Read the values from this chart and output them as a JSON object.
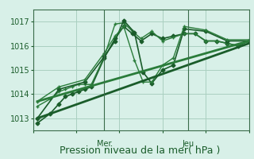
{
  "bg_color": "#d8f0e8",
  "plot_bg_color": "#d8f0e8",
  "grid_color": "#aad0c0",
  "ylim": [
    1012.5,
    1017.5
  ],
  "yticks": [
    1013,
    1014,
    1015,
    1016,
    1017
  ],
  "xlabel": "Pression niveau de la mer( hPa )",
  "xlabel_fontsize": 9,
  "tick_fontsize": 7,
  "day_labels": [
    "Mer",
    "Jeu"
  ],
  "day_positions": [
    0.33,
    0.72
  ],
  "series": [
    {
      "x": [
        0.02,
        0.08,
        0.12,
        0.15,
        0.18,
        0.21,
        0.24,
        0.27,
        0.33,
        0.38,
        0.42,
        0.46,
        0.5,
        0.55,
        0.6,
        0.65,
        0.7,
        0.75,
        0.8,
        0.85,
        0.9,
        0.95,
        1.0
      ],
      "y": [
        1012.8,
        1013.2,
        1013.6,
        1013.9,
        1014.0,
        1014.1,
        1014.2,
        1014.3,
        1015.5,
        1016.3,
        1016.8,
        1016.5,
        1016.2,
        1016.5,
        1016.3,
        1016.4,
        1016.5,
        1016.5,
        1016.2,
        1016.2,
        1016.1,
        1016.0,
        1016.2
      ],
      "marker": "D",
      "markersize": 2.5,
      "linewidth": 1.2,
      "color": "#1a5c2a"
    },
    {
      "x": [
        0.02,
        0.08,
        0.12,
        0.15,
        0.18,
        0.21,
        0.24,
        0.27,
        0.33,
        0.38,
        0.42,
        0.46,
        0.5,
        0.55,
        0.6,
        0.65,
        0.7,
        0.75,
        0.8,
        0.85,
        0.9,
        0.95,
        1.0
      ],
      "y": [
        1013.5,
        1013.8,
        1014.1,
        1014.2,
        1014.3,
        1014.4,
        1014.4,
        1014.4,
        1015.55,
        1016.9,
        1016.95,
        1016.6,
        1016.3,
        1016.6,
        1016.2,
        1016.35,
        1016.5,
        1016.5,
        1016.2,
        1016.2,
        1016.1,
        1016.0,
        1016.2
      ],
      "marker": "+",
      "markersize": 3,
      "linewidth": 1.0,
      "color": "#2a7c3a"
    },
    {
      "x": [
        0.02,
        0.12,
        0.24,
        0.33,
        0.38,
        0.42,
        0.47,
        0.51,
        0.55,
        0.6,
        0.65,
        0.7,
        0.8,
        0.9,
        1.0
      ],
      "y": [
        1013.0,
        1014.2,
        1014.5,
        1015.55,
        1016.2,
        1017.05,
        1016.55,
        1014.9,
        1014.45,
        1015.0,
        1015.2,
        1016.7,
        1016.6,
        1016.2,
        1016.2
      ],
      "marker": "D",
      "markersize": 2.5,
      "linewidth": 1.2,
      "color": "#1a5c2a"
    },
    {
      "x": [
        0.02,
        0.12,
        0.24,
        0.33,
        0.38,
        0.42,
        0.47,
        0.51,
        0.55,
        0.6,
        0.65,
        0.7,
        0.8,
        0.9,
        1.0
      ],
      "y": [
        1013.7,
        1014.3,
        1014.6,
        1015.7,
        1016.4,
        1016.8,
        1015.4,
        1014.5,
        1014.5,
        1015.2,
        1015.5,
        1016.8,
        1016.65,
        1016.25,
        1016.25
      ],
      "marker": "+",
      "markersize": 3,
      "linewidth": 1.0,
      "color": "#2a7c3a"
    },
    {
      "x": [
        0.02,
        1.0
      ],
      "y": [
        1013.0,
        1016.1
      ],
      "marker": null,
      "markersize": 0,
      "linewidth": 2.0,
      "color": "#1a5c2a"
    },
    {
      "x": [
        0.02,
        1.0
      ],
      "y": [
        1013.7,
        1016.2
      ],
      "marker": null,
      "markersize": 0,
      "linewidth": 2.0,
      "color": "#2a7c3a"
    }
  ]
}
